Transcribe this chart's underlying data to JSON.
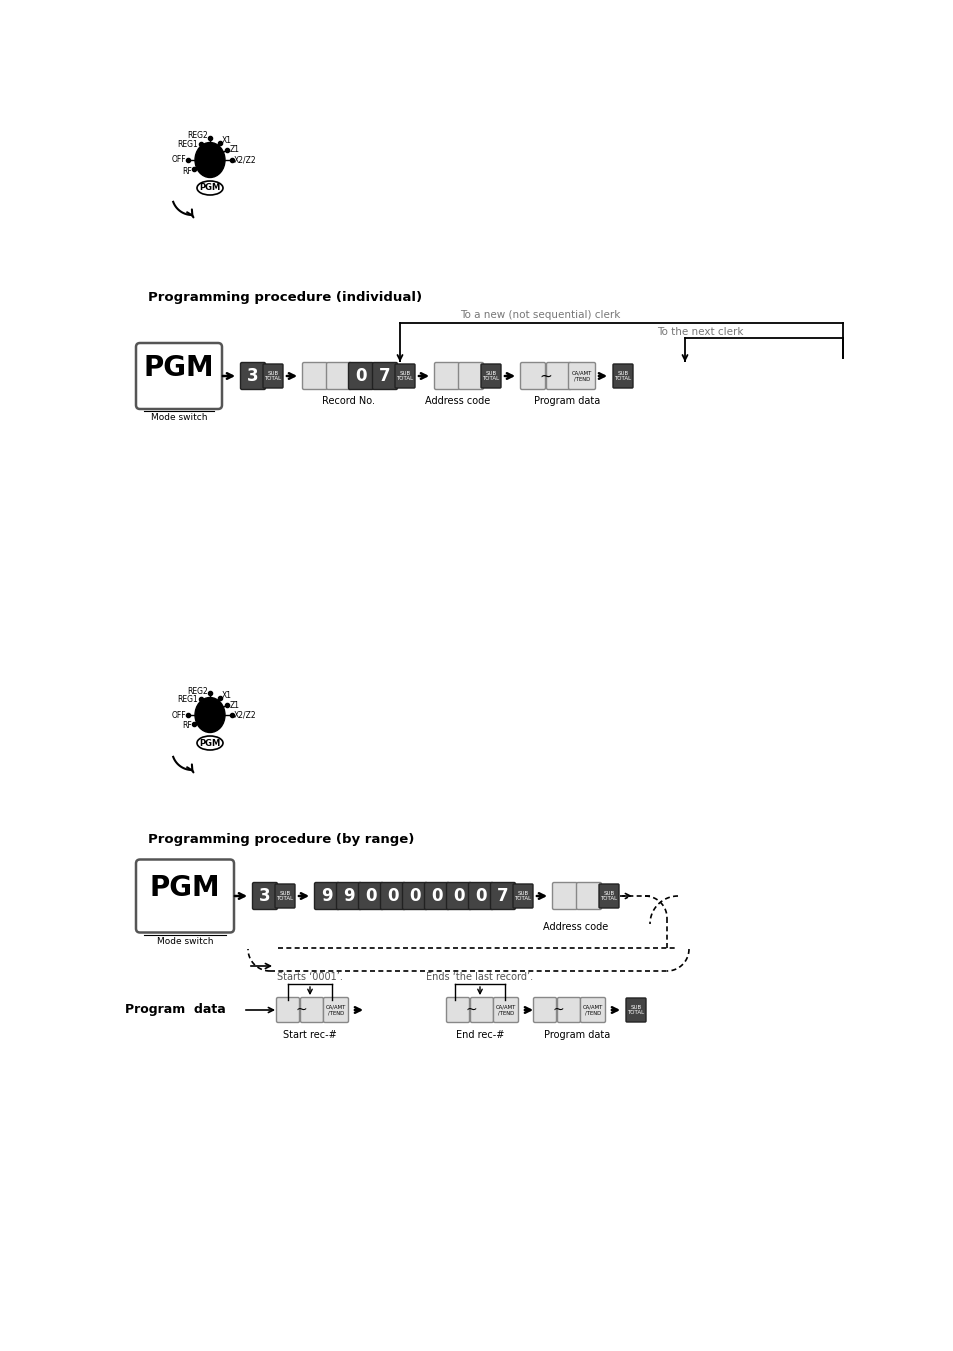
{
  "bg_color": "#ffffff",
  "section1_title": "Programming procedure (individual)",
  "section1_note1": "To a new (not sequential) clerk",
  "section1_note2": "To the next clerk",
  "section1_labels": [
    "Record No.",
    "Address code",
    "Program data"
  ],
  "section2_title": "Programming procedure (by range)",
  "section2_addr_label": "Address code",
  "section2_bottom_labels": [
    "Start rec-#",
    "End rec-#",
    "Program data"
  ],
  "section2_starts": "Starts ‘0001’.",
  "section2_ends": "Ends ‘the last record’.",
  "program_data_label": "Program  data",
  "nums_range": [
    "9",
    "9",
    "0",
    "0",
    "0",
    "0",
    "0",
    "0",
    "7"
  ],
  "key_body_color": "#1a1a1a",
  "key_dark_color": "#555555",
  "key_light_face": "#e0e0e0",
  "key_light_edge": "#888888"
}
